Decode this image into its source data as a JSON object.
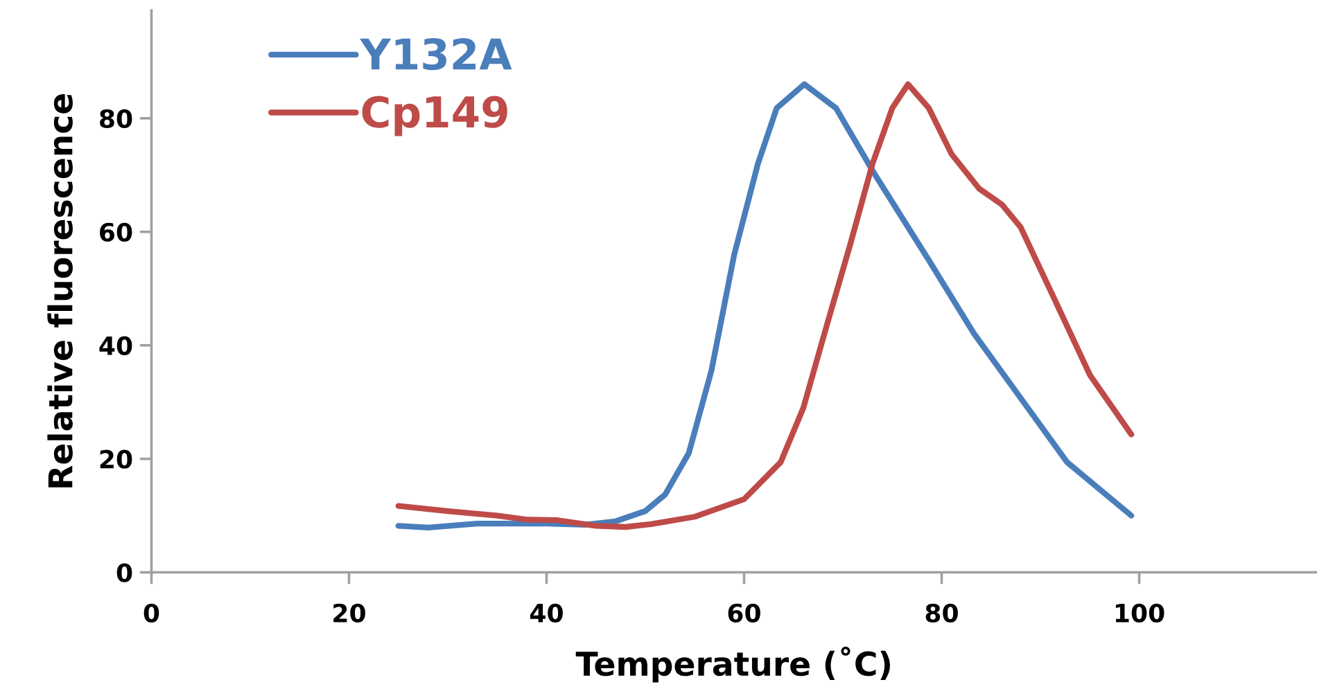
{
  "chart_data": {
    "type": "line",
    "xlabel": "Temperature (˚C)",
    "ylabel": "Relative fluorescence",
    "xlim": [
      0,
      118
    ],
    "xticks": [
      0,
      20,
      40,
      60,
      80,
      100
    ],
    "ylim": [
      0,
      99
    ],
    "yticks": [
      0,
      20,
      40,
      60,
      80
    ],
    "grid": false,
    "legend": "top left",
    "marker": "none",
    "line_style": "solid",
    "series": [
      {
        "name": "Y132A",
        "color": "#4a7ebb",
        "x": [
          25,
          28,
          33,
          40,
          44,
          47,
          50,
          52,
          54.4,
          56.7,
          59,
          61.4,
          63.3,
          66.1,
          69.3,
          73.1,
          78.7,
          83.3,
          88,
          92.7,
          99.2
        ],
        "values": [
          8.2,
          7.9,
          8.6,
          8.6,
          8.4,
          9,
          10.8,
          13.7,
          21,
          35.6,
          56,
          72,
          81.8,
          86,
          81.8,
          70.5,
          55,
          42,
          30.7,
          19.4,
          10
        ]
      },
      {
        "name": "Cp149",
        "color": "#be4b48",
        "x": [
          25,
          30,
          35,
          38,
          41,
          45,
          48,
          50.6,
          55,
          60,
          63.7,
          66,
          68.4,
          70.7,
          73,
          75,
          76.6,
          78.7,
          81,
          83.8,
          86.1,
          88,
          91.3,
          95,
          99.2
        ],
        "values": [
          11.7,
          10.8,
          10,
          9.3,
          9.2,
          8.2,
          8,
          8.5,
          9.8,
          12.9,
          19.4,
          29,
          43.7,
          57.5,
          72,
          81.8,
          86,
          81.8,
          73.7,
          67.6,
          64.8,
          60.8,
          48.6,
          34.8,
          24.3
        ]
      }
    ]
  }
}
